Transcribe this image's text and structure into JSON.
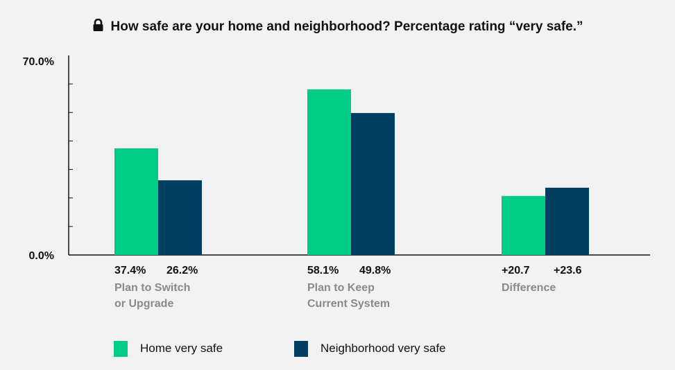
{
  "title": "How safe are your home and neighborhood? Percentage rating “very safe.”",
  "icons": {
    "title": "lock-icon"
  },
  "colors": {
    "home": "#00cc85",
    "neighborhood": "#003f62",
    "background": "#f2f2f2"
  },
  "chart_data": {
    "type": "bar",
    "title": "How safe are your home and neighborhood? Percentage rating “very safe.”",
    "xlabel": "",
    "ylabel": "",
    "ylim": [
      0,
      70
    ],
    "yticks": [
      "0.0%",
      "70.0%"
    ],
    "grid": false,
    "legend_position": "bottom",
    "categories": [
      [
        "Plan to Switch",
        "or Upgrade"
      ],
      [
        "Plan to Keep",
        "Current System"
      ],
      [
        "Difference"
      ]
    ],
    "series": [
      {
        "name": "Home very safe",
        "color": "#00cc85",
        "values": [
          37.4,
          58.1,
          20.7
        ],
        "labels": [
          "37.4%",
          "58.1%",
          "+20.7"
        ]
      },
      {
        "name": "Neighborhood very safe",
        "color": "#003f62",
        "values": [
          26.2,
          49.8,
          23.6
        ],
        "labels": [
          "26.2%",
          "49.8%",
          "+23.6"
        ]
      }
    ]
  }
}
